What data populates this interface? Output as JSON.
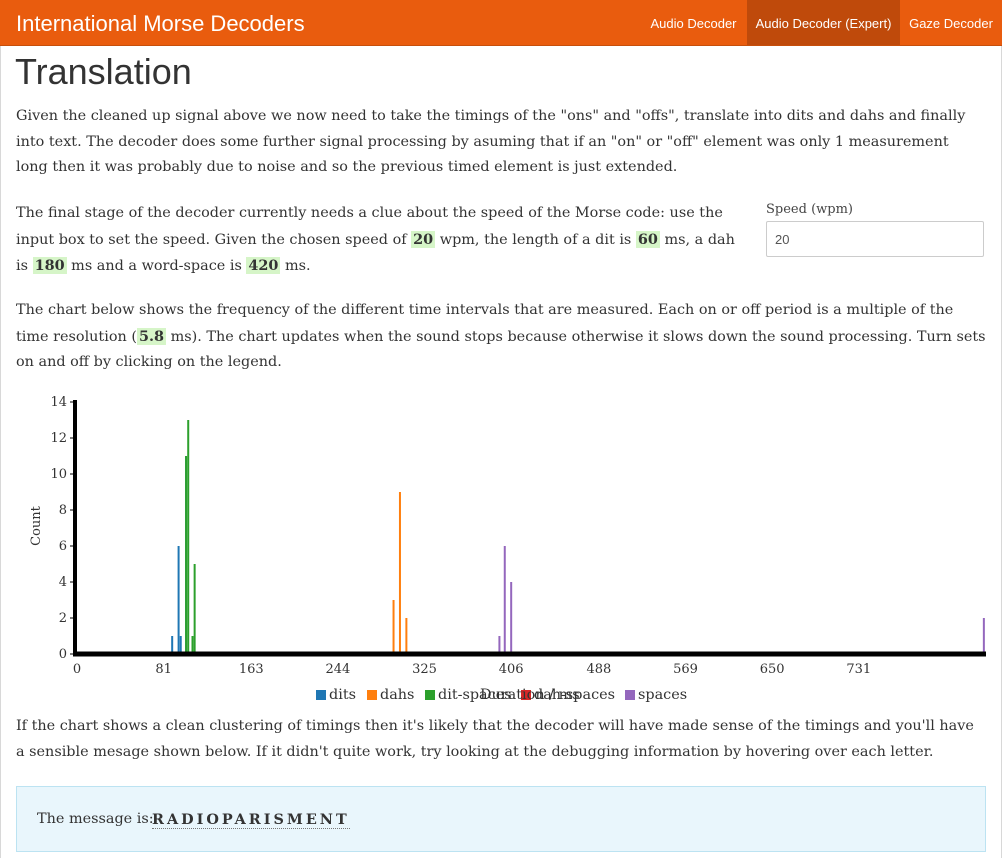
{
  "nav": {
    "brand": "International Morse Decoders",
    "links": [
      "Audio Decoder",
      "Audio Decoder (Expert)",
      "Gaze Decoder"
    ]
  },
  "section": {
    "title": "Translation"
  },
  "text": {
    "p1": "Given the cleaned up signal above we now need to take the timings of the \"ons\" and \"offs\", translate into dits and dahs and finally into text. The decoder does some further signal processing by asuming that if an \"on\" or \"off\" element was only 1 measurement long then it was probably due to noise and so the previous timed element is just extended.",
    "p2a": "The final stage of the decoder currently needs a clue about the speed of the Morse code: use the input box to set the speed. Given the chosen speed of ",
    "p2b": " wpm, the length of a dit is ",
    "p2c": " ms, a dah is ",
    "p2d": " ms and a word-space is ",
    "p2e": " ms.",
    "p3a": "The chart below shows the frequency of the different time intervals that are measured. Each on or off period is a multiple of the time resolution (",
    "p3b": " ms). The chart updates when the sound stops because otherwise it slows down the sound processing. Turn sets on and off by clicking on the legend.",
    "p4": "If the chart shows a clean clustering of timings then it's likely that the decoder will have made sense of the timings and you'll have a sensible mesage shown below. If it didn't quite work, try looking at the debugging information by hovering over each letter."
  },
  "values": {
    "wpm": "20",
    "dit": "60",
    "dah": "180",
    "word_space": "420",
    "resolution": "5.8"
  },
  "speed": {
    "label": "Speed (wpm)",
    "value": "20"
  },
  "chart_data": {
    "type": "bar",
    "xlabel": "Duration / ms",
    "ylabel": "Count",
    "xlim": [
      0,
      850
    ],
    "ylim": [
      0,
      14
    ],
    "x_ticks": [
      0,
      81,
      163,
      244,
      325,
      406,
      488,
      569,
      650,
      731
    ],
    "y_ticks": [
      0,
      2,
      4,
      6,
      8,
      10,
      12,
      14
    ],
    "series": [
      {
        "name": "dits",
        "color": "#1f77b4",
        "points": [
          [
            89,
            1
          ],
          [
            95,
            6
          ],
          [
            97,
            1
          ],
          [
            102,
            11
          ]
        ]
      },
      {
        "name": "dahs",
        "color": "#ff7f0e",
        "points": [
          [
            296,
            3
          ],
          [
            302,
            9
          ],
          [
            308,
            2
          ]
        ]
      },
      {
        "name": "dit-spaces",
        "color": "#2ca02c",
        "points": [
          [
            102,
            11
          ],
          [
            104,
            13
          ],
          [
            108,
            1
          ],
          [
            110,
            5
          ]
        ]
      },
      {
        "name": "dah-spaces",
        "color": "#d62728",
        "points": []
      },
      {
        "name": "spaces",
        "color": "#9467bd",
        "points": [
          [
            395,
            1
          ],
          [
            400,
            6
          ],
          [
            406,
            4
          ],
          [
            848,
            2
          ]
        ]
      }
    ]
  },
  "message": {
    "prefix": "The message is:",
    "text": "RADIOPARISMENT"
  }
}
